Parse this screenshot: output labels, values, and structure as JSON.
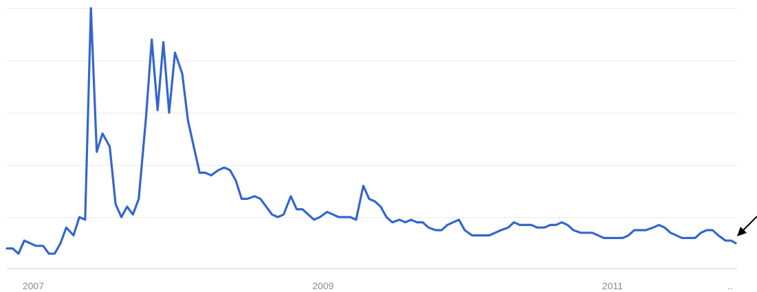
{
  "chart_data": {
    "type": "line",
    "title": "",
    "xlabel": "",
    "ylabel": "",
    "xlim": [
      2006.92,
      2011.95
    ],
    "ylim": [
      0,
      100
    ],
    "grid": true,
    "legend": "none",
    "x_ticks": [
      {
        "value": 2007,
        "label": "2007"
      },
      {
        "value": 2009,
        "label": "2009"
      },
      {
        "value": 2011,
        "label": "2011"
      }
    ],
    "y_gridlines": [
      20,
      40,
      60,
      80,
      100
    ],
    "series": [
      {
        "color": "#3366cc",
        "x": [
          2006.92,
          2006.96,
          2007.0,
          2007.04,
          2007.08,
          2007.12,
          2007.17,
          2007.21,
          2007.25,
          2007.29,
          2007.33,
          2007.38,
          2007.42,
          2007.46,
          2007.5,
          2007.54,
          2007.58,
          2007.63,
          2007.67,
          2007.71,
          2007.75,
          2007.79,
          2007.83,
          2007.88,
          2007.92,
          2007.96,
          2008.0,
          2008.04,
          2008.08,
          2008.13,
          2008.17,
          2008.21,
          2008.25,
          2008.29,
          2008.33,
          2008.38,
          2008.42,
          2008.46,
          2008.5,
          2008.54,
          2008.58,
          2008.63,
          2008.67,
          2008.71,
          2008.75,
          2008.79,
          2008.83,
          2008.88,
          2008.92,
          2008.96,
          2009.0,
          2009.04,
          2009.08,
          2009.13,
          2009.17,
          2009.21,
          2009.25,
          2009.29,
          2009.33,
          2009.38,
          2009.42,
          2009.46,
          2009.5,
          2009.54,
          2009.58,
          2009.63,
          2009.67,
          2009.71,
          2009.75,
          2009.79,
          2009.83,
          2009.88,
          2009.92,
          2009.96,
          2010.0,
          2010.04,
          2010.08,
          2010.13,
          2010.17,
          2010.21,
          2010.25,
          2010.29,
          2010.33,
          2010.38,
          2010.42,
          2010.46,
          2010.5,
          2010.54,
          2010.58,
          2010.63,
          2010.67,
          2010.71,
          2010.75,
          2010.79,
          2010.83,
          2010.88,
          2010.92,
          2010.96,
          2011.0,
          2011.04,
          2011.08,
          2011.13,
          2011.17,
          2011.21,
          2011.25,
          2011.29,
          2011.33,
          2011.38,
          2011.42,
          2011.46,
          2011.5,
          2011.54,
          2011.58,
          2011.63,
          2011.67,
          2011.71,
          2011.75,
          2011.79,
          2011.83,
          2011.88,
          2011.92,
          2011.95
        ],
        "values": [
          8,
          8,
          6,
          11,
          10,
          9,
          9,
          6,
          6,
          10,
          16,
          13,
          20,
          19,
          100,
          45,
          52,
          47,
          25,
          20,
          24,
          21,
          27,
          58,
          88,
          61,
          87,
          60,
          83,
          75,
          57,
          47,
          37,
          37,
          36,
          38,
          39,
          38,
          34,
          27,
          27,
          28,
          27,
          24,
          21,
          20,
          21,
          28,
          23,
          23,
          21,
          19,
          20,
          22,
          21,
          20,
          20,
          20,
          19,
          32,
          27,
          26,
          24,
          20,
          18,
          19,
          18,
          19,
          18,
          18,
          16,
          15,
          15,
          17,
          18,
          19,
          15,
          13,
          13,
          13,
          13,
          14,
          15,
          16,
          18,
          17,
          17,
          17,
          16,
          16,
          17,
          17,
          18,
          17,
          15,
          14,
          14,
          14,
          13,
          12,
          12,
          12,
          12,
          13,
          15,
          15,
          15,
          16,
          17,
          16,
          14,
          13,
          12,
          12,
          12,
          14,
          15,
          15,
          13,
          11,
          11,
          10
        ]
      }
    ],
    "annotations": [
      {
        "type": "arrow",
        "points_to": "last-point"
      }
    ],
    "ellipsis_label": ".."
  }
}
